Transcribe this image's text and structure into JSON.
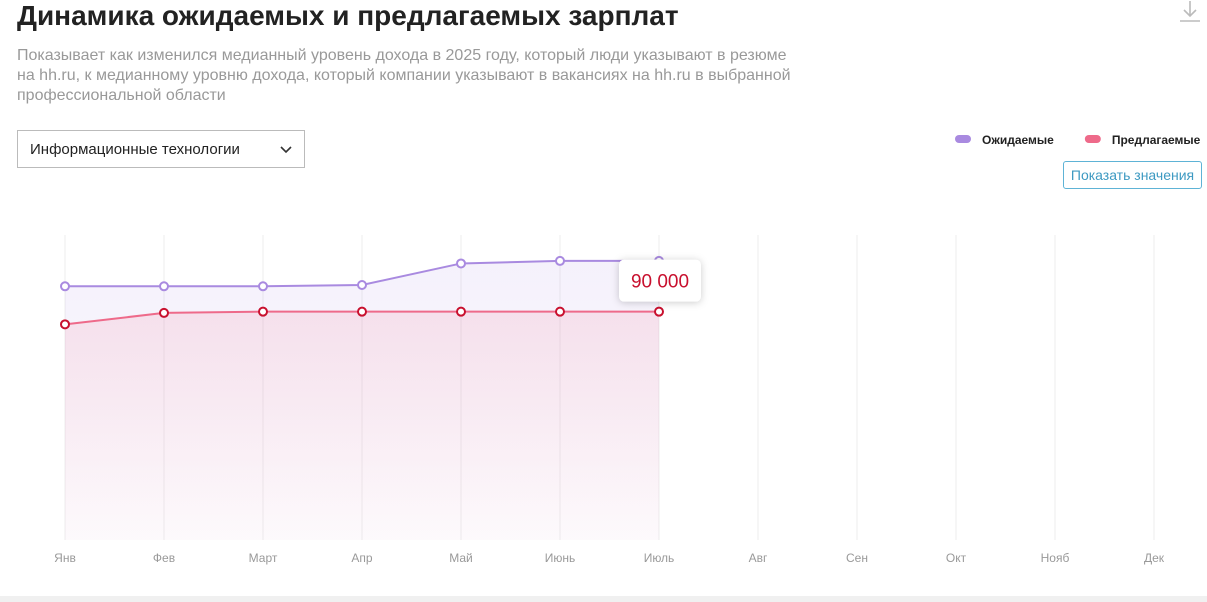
{
  "chart_data": {
    "type": "line",
    "title": "Динамика ожидаемых и предлагаемых зарплат",
    "subtitle": "Показывает как изменился медианный уровень дохода в 2025 году, который люди указывают в резюме на hh.ru, к медианному уровню дохода, который компании указывают в вакансиях на hh.ru в выбранной профессиональной области",
    "dropdown": "Информационные технологии",
    "button": "Показать значения",
    "categories": [
      "Янв",
      "Фев",
      "Март",
      "Апр",
      "Май",
      "Июнь",
      "Июль",
      "Авг",
      "Сен",
      "Окт",
      "Нояб",
      "Дек"
    ],
    "series": [
      {
        "name": "Ожидаемые",
        "color": "#a98ae0",
        "values": [
          100000,
          100000,
          100000,
          100500,
          109000,
          110000,
          110000,
          null,
          null,
          null,
          null,
          null
        ]
      },
      {
        "name": "Предлагаемые",
        "color": "#ee6a8a",
        "values": [
          85000,
          89500,
          90000,
          90000,
          90000,
          90000,
          90000,
          null,
          null,
          null,
          null,
          null
        ],
        "value_labels": [
          null,
          null,
          null,
          null,
          null,
          null,
          "90 000",
          null,
          null,
          null,
          null,
          null
        ]
      }
    ],
    "ylim": [
      0,
      121000
    ],
    "grid": true,
    "legend": "top-right"
  }
}
